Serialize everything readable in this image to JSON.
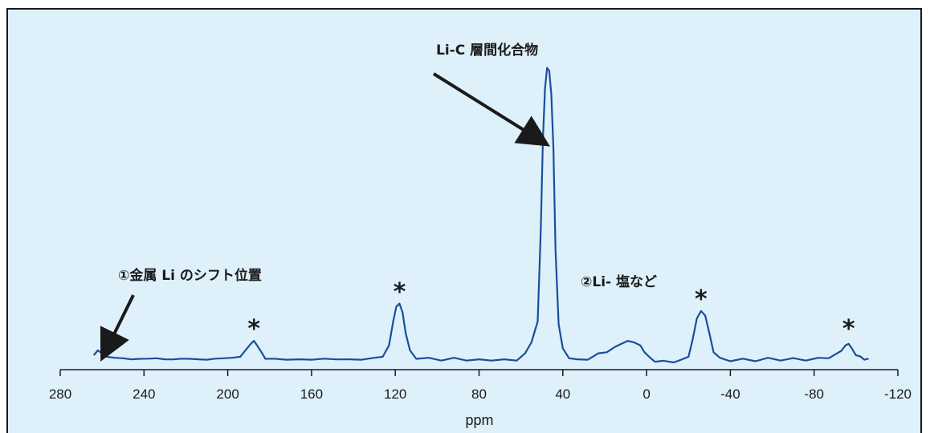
{
  "chart_data": {
    "type": "line",
    "title": "",
    "xlabel": "ppm",
    "ylabel": "",
    "xlim": [
      280,
      -120
    ],
    "x_reversed": true,
    "x_ticks": [
      280,
      240,
      200,
      160,
      120,
      80,
      40,
      0,
      -40,
      -80,
      -120
    ],
    "y_axis_visible": false,
    "grid": false,
    "series": [
      {
        "color": "#1b4d9b",
        "points": [
          [
            264,
            0.03
          ],
          [
            262,
            0.04
          ],
          [
            258,
            0.025
          ],
          [
            254,
            0.015
          ],
          [
            250,
            0.02
          ],
          [
            246,
            0.01
          ],
          [
            242,
            0.018
          ],
          [
            238,
            0.012
          ],
          [
            234,
            0.02
          ],
          [
            230,
            0.01
          ],
          [
            226,
            0.016
          ],
          [
            222,
            0.012
          ],
          [
            218,
            0.018
          ],
          [
            214,
            0.01
          ],
          [
            210,
            0.015
          ],
          [
            206,
            0.012
          ],
          [
            202,
            0.02
          ],
          [
            198,
            0.015
          ],
          [
            194,
            0.025
          ],
          [
            191,
            0.045
          ],
          [
            189,
            0.065
          ],
          [
            187.5,
            0.075
          ],
          [
            186,
            0.06
          ],
          [
            184,
            0.035
          ],
          [
            182,
            0.018
          ],
          [
            178,
            0.012
          ],
          [
            172,
            0.015
          ],
          [
            166,
            0.01
          ],
          [
            160,
            0.015
          ],
          [
            154,
            0.012
          ],
          [
            148,
            0.016
          ],
          [
            142,
            0.01
          ],
          [
            136,
            0.015
          ],
          [
            130,
            0.015
          ],
          [
            126,
            0.025
          ],
          [
            123,
            0.06
          ],
          [
            121,
            0.14
          ],
          [
            119.5,
            0.19
          ],
          [
            118,
            0.2
          ],
          [
            116.5,
            0.17
          ],
          [
            115,
            0.1
          ],
          [
            113,
            0.04
          ],
          [
            110,
            0.018
          ],
          [
            104,
            0.015
          ],
          [
            98,
            0.012
          ],
          [
            92,
            0.015
          ],
          [
            86,
            0.012
          ],
          [
            80,
            0.01
          ],
          [
            74,
            0.012
          ],
          [
            68,
            0.01
          ],
          [
            62,
            0.012
          ],
          [
            58,
            0.03
          ],
          [
            55,
            0.07
          ],
          [
            52,
            0.14
          ],
          [
            50.5,
            0.45
          ],
          [
            49.5,
            0.75
          ],
          [
            48.5,
            0.92
          ],
          [
            47.5,
            0.99
          ],
          [
            46.5,
            0.98
          ],
          [
            45.5,
            0.9
          ],
          [
            44.5,
            0.72
          ],
          [
            43.5,
            0.38
          ],
          [
            42,
            0.13
          ],
          [
            40,
            0.05
          ],
          [
            37,
            0.02
          ],
          [
            33,
            0.01
          ],
          [
            28,
            0.015
          ],
          [
            23,
            0.03
          ],
          [
            19,
            0.04
          ],
          [
            15,
            0.055
          ],
          [
            12,
            0.065
          ],
          [
            9,
            0.075
          ],
          [
            6,
            0.07
          ],
          [
            3,
            0.06
          ],
          [
            1,
            0.04
          ],
          [
            -1,
            0.02
          ],
          [
            -4,
            0.008
          ],
          [
            -8,
            0.005
          ],
          [
            -13,
            0.006
          ],
          [
            -17,
            0.01
          ],
          [
            -20,
            0.025
          ],
          [
            -22,
            0.08
          ],
          [
            -24,
            0.15
          ],
          [
            -26,
            0.175
          ],
          [
            -28,
            0.16
          ],
          [
            -30,
            0.1
          ],
          [
            -32,
            0.04
          ],
          [
            -35,
            0.015
          ],
          [
            -40,
            0.01
          ],
          [
            -46,
            0.012
          ],
          [
            -52,
            0.01
          ],
          [
            -58,
            0.015
          ],
          [
            -64,
            0.012
          ],
          [
            -70,
            0.014
          ],
          [
            -76,
            0.012
          ],
          [
            -82,
            0.015
          ],
          [
            -87,
            0.02
          ],
          [
            -91,
            0.03
          ],
          [
            -93,
            0.045
          ],
          [
            -95,
            0.06
          ],
          [
            -96.5,
            0.065
          ],
          [
            -98,
            0.05
          ],
          [
            -100,
            0.03
          ],
          [
            -102,
            0.02
          ],
          [
            -104,
            0.015
          ],
          [
            -106,
            0.012
          ]
        ]
      }
    ],
    "annotations": [
      {
        "text": "Li-C 層間化合物",
        "x": 47,
        "arrow_to": [
          47,
          0.72
        ]
      },
      {
        "text": "①金属 Li のシフト位置",
        "x": 262,
        "arrow_to": [
          262,
          0.05
        ]
      },
      {
        "text": "②Li- 塩など",
        "x": 10
      },
      {
        "text": "*",
        "x": 187.5
      },
      {
        "text": "*",
        "x": 118
      },
      {
        "text": "*",
        "x": -26
      },
      {
        "text": "*",
        "x": -96.5
      }
    ]
  }
}
